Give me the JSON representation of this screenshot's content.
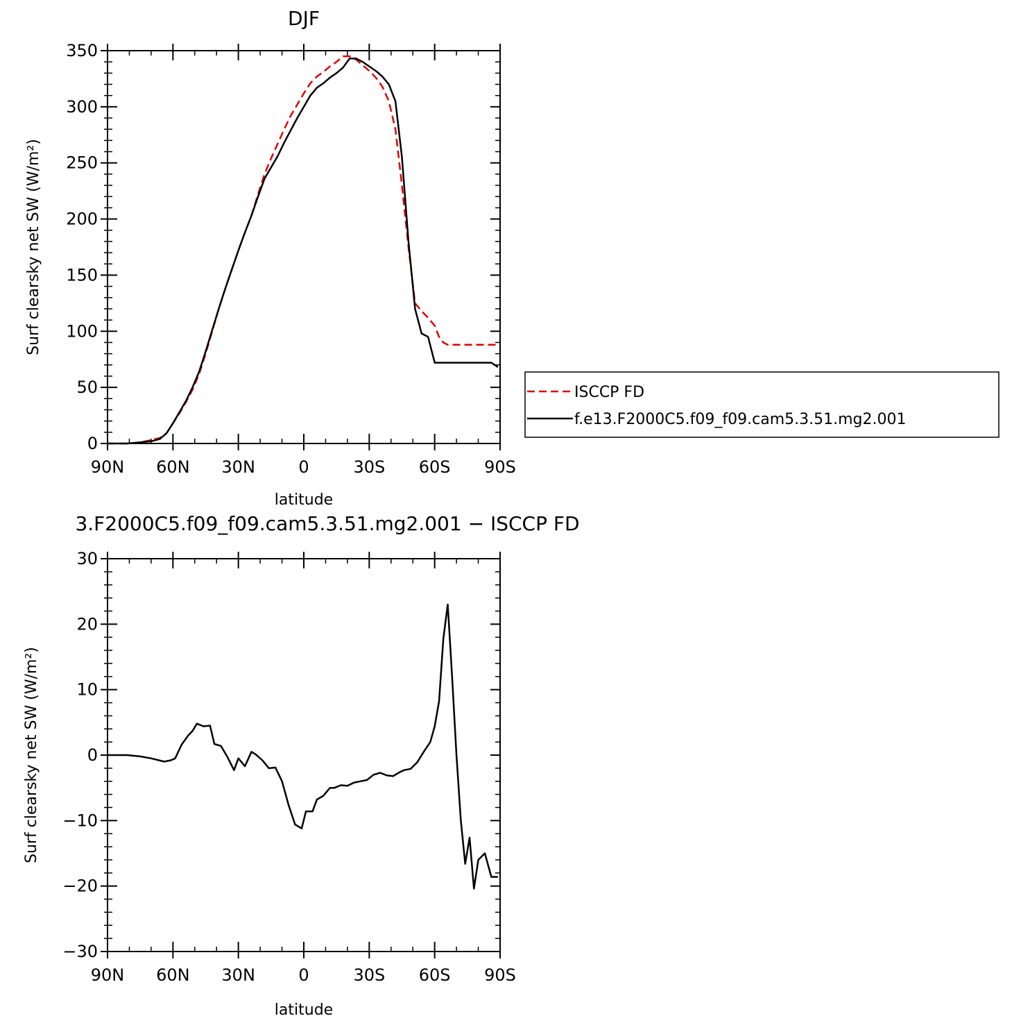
{
  "chart_data": [
    {
      "type": "line",
      "title": "DJF",
      "xlabel": "latitude",
      "ylabel": "Surf clearsky net SW (W/m²)",
      "xlim": [
        90,
        -90
      ],
      "ylim": [
        0,
        350
      ],
      "yticks": [
        0,
        50,
        100,
        150,
        200,
        250,
        300,
        350
      ],
      "xticks": [
        {
          "value": 90,
          "label": "90N"
        },
        {
          "value": 60,
          "label": "60N"
        },
        {
          "value": 30,
          "label": "30N"
        },
        {
          "value": 0,
          "label": "0"
        },
        {
          "value": -30,
          "label": "30S"
        },
        {
          "value": -60,
          "label": "60S"
        },
        {
          "value": -90,
          "label": "90S"
        }
      ],
      "legend": "right",
      "series": [
        {
          "name": "ISCCP FD",
          "color": "#e00000",
          "dash": "dashed",
          "x": [
            90,
            81,
            75,
            70,
            66,
            63,
            60,
            57,
            54,
            51,
            48,
            45,
            42,
            39,
            36,
            33,
            30,
            27,
            24,
            21,
            18,
            15,
            12,
            9,
            6,
            3,
            0,
            -3,
            -6,
            -9,
            -12,
            -15,
            -18,
            -21,
            -24,
            -27,
            -30,
            -33,
            -36,
            -39,
            -42,
            -45,
            -48,
            -51,
            -54,
            -57,
            -60,
            -62,
            -64,
            -66,
            -68,
            -70,
            -72,
            -74,
            -76,
            -78,
            -80,
            -83,
            -86,
            -89
          ],
          "y": [
            0,
            0,
            1,
            3,
            5,
            9,
            18,
            27,
            37,
            48,
            62,
            80,
            100,
            120,
            138,
            155,
            172,
            188,
            203,
            222,
            240,
            254,
            267,
            280,
            292,
            302,
            312,
            321,
            327,
            331,
            336,
            340,
            345,
            345,
            342,
            337,
            332,
            326,
            318,
            305,
            280,
            230,
            175,
            125,
            118,
            112,
            105,
            95,
            90,
            88,
            88,
            88,
            88,
            88,
            88,
            88,
            88,
            88,
            88,
            88
          ],
          "x_note": "",
          "y_note": ""
        },
        {
          "name": "f.e13.F2000C5.f09_f09.cam5.3.51.mg2.001",
          "color": "#000000",
          "dash": "solid",
          "x": [
            90,
            81,
            75,
            70,
            66,
            63,
            60,
            57,
            54,
            51,
            48,
            45,
            42,
            39,
            36,
            33,
            30,
            27,
            24,
            21,
            18,
            15,
            12,
            9,
            6,
            3,
            0,
            -3,
            -6,
            -9,
            -12,
            -15,
            -18,
            -21,
            -24,
            -27,
            -30,
            -33,
            -36,
            -39,
            -42,
            -45,
            -48,
            -51,
            -54,
            -57,
            -60,
            -62,
            -64,
            -66,
            -68,
            -70,
            -72,
            -74,
            -76,
            -78,
            -80,
            -83,
            -86,
            -89
          ],
          "y": [
            0,
            0,
            1,
            2,
            4,
            9,
            18,
            28,
            38,
            50,
            64,
            82,
            101,
            120,
            138,
            155,
            172,
            188,
            203,
            220,
            236,
            246,
            256,
            268,
            279,
            290,
            300,
            310,
            317,
            321,
            326,
            330,
            335,
            343,
            343,
            340,
            336,
            332,
            327,
            320,
            305,
            255,
            180,
            120,
            98,
            95,
            72,
            72,
            72,
            72,
            72,
            72,
            72,
            72,
            72,
            72,
            72,
            72,
            72,
            68
          ]
        }
      ]
    },
    {
      "type": "line",
      "title": "3.F2000C5.f09_f09.cam5.3.51.mg2.001 − ISCCP FD",
      "xlabel": "latitude",
      "ylabel": "Surf clearsky net SW (W/m²)",
      "xlim": [
        90,
        -90
      ],
      "ylim": [
        -30,
        30
      ],
      "yticks": [
        -30,
        -20,
        -10,
        0,
        10,
        20,
        30
      ],
      "ytick_labels": [
        "−30",
        "−20",
        "−10",
        "0",
        "10",
        "20",
        "30"
      ],
      "xticks": [
        {
          "value": 90,
          "label": "90N"
        },
        {
          "value": 60,
          "label": "60N"
        },
        {
          "value": 30,
          "label": "30N"
        },
        {
          "value": 0,
          "label": "0"
        },
        {
          "value": -30,
          "label": "30S"
        },
        {
          "value": -60,
          "label": "60S"
        },
        {
          "value": -90,
          "label": "90S"
        }
      ],
      "series": [
        {
          "color": "#000000",
          "dash": "solid",
          "x": [
            90,
            81,
            75,
            70,
            64,
            61,
            59,
            56,
            53,
            51,
            49,
            46,
            43,
            41,
            38,
            35,
            32,
            30,
            27,
            24,
            22,
            19,
            16,
            13,
            10,
            7,
            4,
            1,
            -1,
            -4,
            -6,
            -9,
            -12,
            -14,
            -17,
            -20,
            -23,
            -26,
            -29,
            -32,
            -35,
            -38,
            -41,
            -44,
            -46,
            -49,
            -52,
            -55,
            -58,
            -60,
            -62,
            -64,
            -66,
            -68,
            -70,
            -72,
            -74,
            -76,
            -78,
            -80,
            -83,
            -86,
            -89
          ],
          "y": [
            0,
            0,
            -0.2,
            -0.5,
            -1.0,
            -0.8,
            -0.5,
            1.6,
            3.0,
            3.7,
            4.8,
            4.4,
            4.5,
            1.7,
            1.4,
            -0.3,
            -2.3,
            -0.5,
            -1.7,
            0.5,
            0.1,
            -0.8,
            -2.0,
            -1.9,
            -4.0,
            -7.6,
            -10.6,
            -11.2,
            -8.6,
            -8.6,
            -6.8,
            -6.2,
            -5.0,
            -5.0,
            -4.6,
            -4.7,
            -4.2,
            -4.0,
            -3.8,
            -3.0,
            -2.7,
            -3.1,
            -3.2,
            -2.6,
            -2.3,
            -2.1,
            -1.1,
            0.5,
            2.0,
            4.4,
            8.2,
            17.8,
            23.0,
            12.0,
            0.0,
            -10.0,
            -16.6,
            -12.6,
            -20.4,
            -16.0,
            -15.0,
            -18.6,
            -18.6
          ]
        }
      ]
    }
  ]
}
